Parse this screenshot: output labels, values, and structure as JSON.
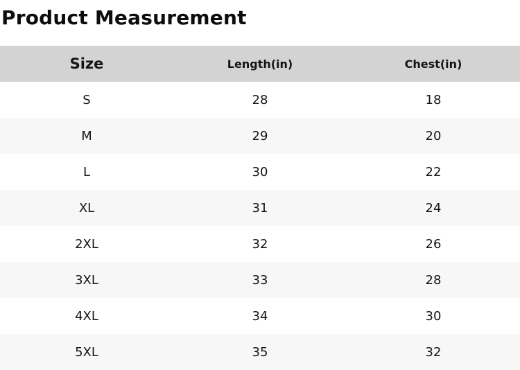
{
  "title": "Product Measurement",
  "chart_data": {
    "type": "table",
    "title": "Product Measurement",
    "columns": [
      "Size",
      "Length(in)",
      "Chest(in)"
    ],
    "rows": [
      [
        "S",
        "28",
        "18"
      ],
      [
        "M",
        "29",
        "20"
      ],
      [
        "L",
        "30",
        "22"
      ],
      [
        "XL",
        "31",
        "24"
      ],
      [
        "2XL",
        "32",
        "26"
      ],
      [
        "3XL",
        "33",
        "28"
      ],
      [
        "4XL",
        "34",
        "30"
      ],
      [
        "5XL",
        "35",
        "32"
      ]
    ],
    "layout": {
      "header_row": true,
      "zebra_striping": true,
      "column_alignment": "center"
    }
  },
  "colors": {
    "header_bg": "#d3d3d3",
    "stripe_bg": "#f7f7f7",
    "row_bg": "#ffffff",
    "text": "#141414"
  }
}
